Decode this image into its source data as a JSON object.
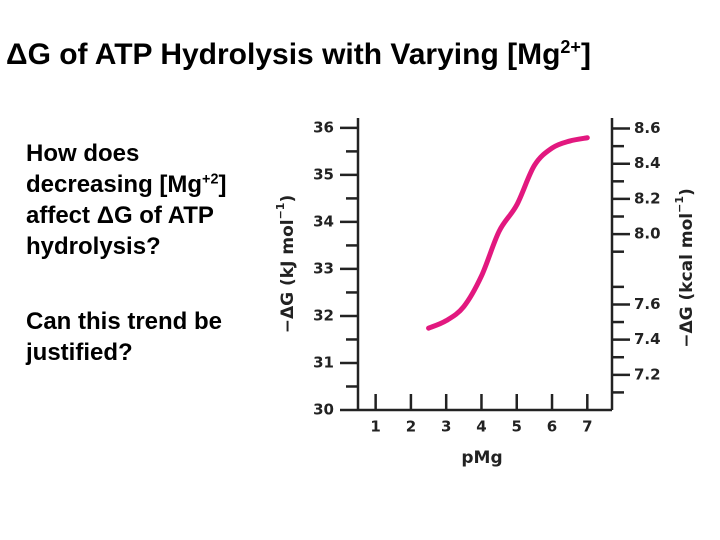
{
  "slide": {
    "title": [
      "ΔG of ATP Hydrolysis with Varying [Mg",
      "2+",
      "]"
    ],
    "question": [
      "How does",
      "decreasing [Mg",
      "+2",
      "]",
      "affect ΔG of ATP",
      "hydrolysis?"
    ],
    "followup": [
      "Can this trend be",
      "justified?"
    ]
  },
  "chart_data": {
    "type": "line",
    "x_label": "pMg",
    "y_label": [
      "−ΔG (kJ mol",
      "−1",
      ")"
    ],
    "y2_label": [
      "−ΔG (kcal mol",
      "−1",
      ")"
    ],
    "xlim": [
      0.5,
      7.7
    ],
    "xticks": [
      1,
      2,
      3,
      4,
      5,
      6,
      7
    ],
    "ylim": [
      30,
      36.21
    ],
    "yticks": [
      30,
      31,
      32,
      33,
      34,
      35,
      36
    ],
    "yminor": [
      30.5,
      31.5,
      32.5,
      33.5,
      34.5,
      35.5
    ],
    "y2lim": [
      7.0,
      8.66
    ],
    "y2ticks": [
      7.2,
      7.4,
      7.6,
      {
        "value": 8.0,
        "label": "8.0"
      },
      8.2,
      8.4,
      8.6
    ],
    "y2minor": [
      7.1,
      7.3,
      7.5,
      7.7,
      7.9,
      8.1,
      8.3,
      8.5
    ],
    "series": [
      {
        "color": "#e2187f",
        "x": [
          2.5,
          3,
          3.5,
          4,
          4.5,
          5,
          5.5,
          6,
          6.5,
          7
        ],
        "values": [
          31.74,
          31.9,
          32.2,
          32.85,
          33.8,
          34.36,
          35.2,
          35.57,
          35.72,
          35.79
        ]
      }
    ]
  }
}
